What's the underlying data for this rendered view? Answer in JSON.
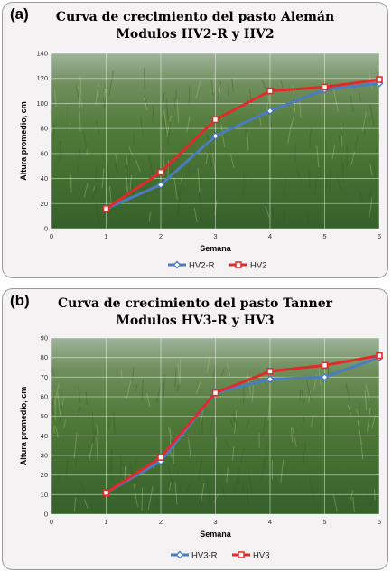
{
  "chart_data": [
    {
      "panel_tag": "(a)",
      "type": "line",
      "title": "Curva de crecimiento del pasto Alemán",
      "subtitle": "Modulos HV2-R y HV2",
      "xlabel": "Semana",
      "ylabel": "Altura promedio, cm",
      "xlim": [
        0,
        6
      ],
      "ylim": [
        0,
        140
      ],
      "xticks": [
        0,
        1,
        2,
        3,
        4,
        5,
        6
      ],
      "yticks": [
        0,
        20,
        40,
        60,
        80,
        100,
        120,
        140
      ],
      "grid": true,
      "legend_position": "bottom",
      "x": [
        1,
        2,
        3,
        4,
        5,
        6
      ],
      "series": [
        {
          "name": "HV2-R",
          "color": "#4a7cc0",
          "marker": "diamond",
          "values": [
            16,
            35,
            74,
            94,
            111,
            116
          ]
        },
        {
          "name": "HV2",
          "color": "#e02b2b",
          "marker": "square",
          "values": [
            16,
            45,
            87,
            110,
            113,
            119
          ]
        }
      ]
    },
    {
      "panel_tag": "(b)",
      "type": "line",
      "title": "Curva de crecimiento del pasto Tanner",
      "subtitle": "Modulos HV3-R y HV3",
      "xlabel": "Semana",
      "ylabel": "Altura promedio, cm",
      "xlim": [
        0,
        6
      ],
      "ylim": [
        0,
        90
      ],
      "xticks": [
        0,
        1,
        2,
        3,
        4,
        5,
        6
      ],
      "yticks": [
        0,
        10,
        20,
        30,
        40,
        50,
        60,
        70,
        80,
        90
      ],
      "grid": true,
      "legend_position": "bottom",
      "x": [
        1,
        2,
        3,
        4,
        5,
        6
      ],
      "series": [
        {
          "name": "HV3-R",
          "color": "#4a7cc0",
          "marker": "diamond",
          "values": [
            11,
            27,
            62,
            69,
            70,
            80
          ]
        },
        {
          "name": "HV3",
          "color": "#e02b2b",
          "marker": "square",
          "values": [
            11,
            29,
            62,
            73,
            76,
            81
          ]
        }
      ]
    }
  ]
}
